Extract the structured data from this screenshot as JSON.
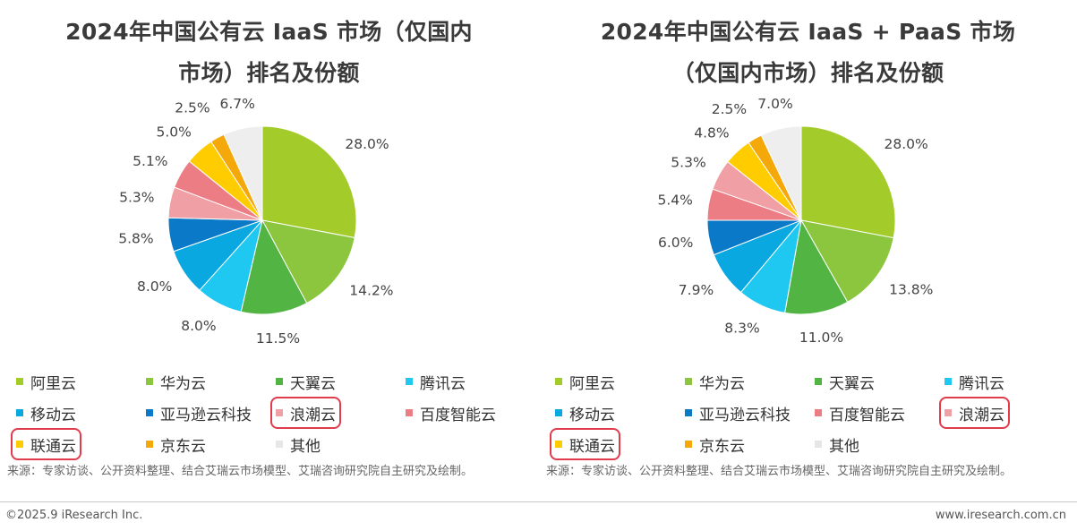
{
  "legend_colors": {
    "阿里云": "#a3cc2a",
    "华为云": "#8cc63f",
    "天翼云": "#52b443",
    "腾讯云": "#1ec8f0",
    "移动云": "#0aa8e0",
    "亚马逊云科技": "#0a79c8",
    "浪潮云": "#f0a0a4",
    "百度智能云": "#ec7d85",
    "联通云": "#ffcc00",
    "京东云": "#f4a80a",
    "其他": "#eeeeee"
  },
  "highlight_color": "#e03c4c",
  "chart_data": [
    {
      "type": "pie",
      "title_lines": [
        "2024年中国公有云 IaaS 市场（仅国内",
        "市场）排名及份额"
      ],
      "slices": [
        {
          "name": "阿里云",
          "value": 28.0,
          "label": "28.0%"
        },
        {
          "name": "华为云",
          "value": 14.2,
          "label": "14.2%"
        },
        {
          "name": "天翼云",
          "value": 11.5,
          "label": "11.5%"
        },
        {
          "name": "腾讯云",
          "value": 8.0,
          "label": "8.0%"
        },
        {
          "name": "移动云",
          "value": 8.0,
          "label": "8.0%"
        },
        {
          "name": "亚马逊云科技",
          "value": 5.8,
          "label": "5.8%"
        },
        {
          "name": "浪潮云",
          "value": 5.3,
          "label": "5.3%"
        },
        {
          "name": "百度智能云",
          "value": 5.1,
          "label": "5.1%"
        },
        {
          "name": "联通云",
          "value": 5.0,
          "label": "5.0%"
        },
        {
          "name": "京东云",
          "value": 2.5,
          "label": "2.5%"
        },
        {
          "name": "其他",
          "value": 6.7,
          "label": "6.7%"
        }
      ],
      "legend": [
        "阿里云",
        "华为云",
        "天翼云",
        "腾讯云",
        "移动云",
        "亚马逊云科技",
        "浪潮云",
        "百度智能云",
        "联通云",
        "京东云",
        "其他"
      ],
      "highlighted": [
        "浪潮云",
        "联通云"
      ],
      "source": "来源：专家访谈、公开资料整理、结合艾瑞云市场模型、艾瑞咨询研究院自主研究及绘制。"
    },
    {
      "type": "pie",
      "title_lines": [
        "2024年中国公有云 IaaS + PaaS 市场",
        "（仅国内市场）排名及份额"
      ],
      "slices": [
        {
          "name": "阿里云",
          "value": 28.0,
          "label": "28.0%"
        },
        {
          "name": "华为云",
          "value": 13.8,
          "label": "13.8%"
        },
        {
          "name": "天翼云",
          "value": 11.0,
          "label": "11.0%"
        },
        {
          "name": "腾讯云",
          "value": 8.3,
          "label": "8.3%"
        },
        {
          "name": "移动云",
          "value": 7.9,
          "label": "7.9%"
        },
        {
          "name": "亚马逊云科技",
          "value": 6.0,
          "label": "6.0%"
        },
        {
          "name": "百度智能云",
          "value": 5.4,
          "label": "5.4%"
        },
        {
          "name": "浪潮云",
          "value": 5.3,
          "label": "5.3%"
        },
        {
          "name": "联通云",
          "value": 4.8,
          "label": "4.8%"
        },
        {
          "name": "京东云",
          "value": 2.5,
          "label": "2.5%"
        },
        {
          "name": "其他",
          "value": 7.0,
          "label": "7.0%"
        }
      ],
      "legend": [
        "阿里云",
        "华为云",
        "天翼云",
        "腾讯云",
        "移动云",
        "亚马逊云科技",
        "百度智能云",
        "浪潮云",
        "联通云",
        "京东云",
        "其他"
      ],
      "highlighted": [
        "浪潮云",
        "联通云"
      ],
      "source": "来源：专家访谈、公开资料整理、结合艾瑞云市场模型、艾瑞咨询研究院自主研究及绘制。"
    }
  ],
  "footer": {
    "copyright": "©2025.9 iResearch Inc.",
    "website": "www.iresearch.com.cn"
  }
}
